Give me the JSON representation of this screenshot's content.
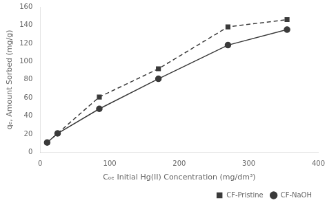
{
  "chart_data": {
    "type": "line",
    "xlabel": "Cₒₑ Initial Hg(II) Concentration (mg/dm³)",
    "ylabel": "qₑ, Amount Sorbed (mg/g)",
    "x": [
      10,
      25,
      85,
      170,
      270,
      355
    ],
    "series": [
      {
        "name": "CF-Pristine",
        "color": "#3a3a3a",
        "marker": "square",
        "line_style": "dashed",
        "values": [
          11,
          21,
          61,
          92,
          138,
          146
        ]
      },
      {
        "name": "CF-NaOH",
        "color": "#3a3a3a",
        "marker": "circle",
        "line_style": "solid",
        "values": [
          11,
          21,
          48,
          81,
          118,
          135
        ]
      }
    ],
    "xlim": [
      0,
      400
    ],
    "ylim": [
      0,
      160
    ],
    "xticks": [
      0,
      100,
      200,
      300,
      400
    ],
    "yticks": [
      0,
      20,
      40,
      60,
      80,
      100,
      120,
      140,
      160
    ],
    "grid": false,
    "legend": "lower right"
  }
}
